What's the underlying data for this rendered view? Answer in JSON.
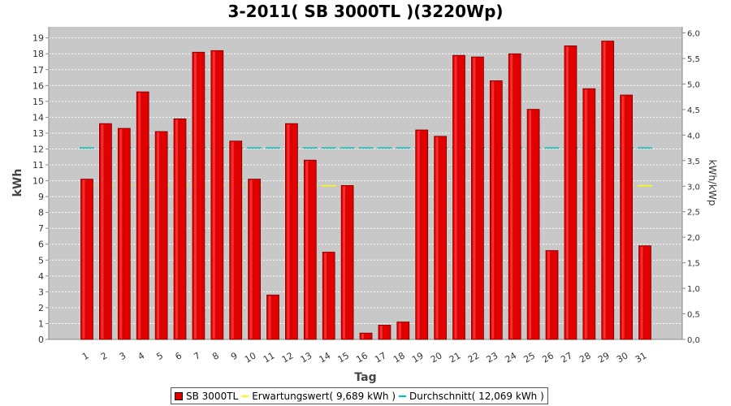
{
  "chart_data": {
    "type": "bar",
    "title": "3-2011( SB 3000TL )(3220Wp)",
    "xlabel": "Tag",
    "ylabel": "kWh",
    "y2label": "kWh/kWp",
    "ylim": [
      0,
      19.7
    ],
    "y2lim": [
      0,
      6.12
    ],
    "yticks": [
      "0",
      "1",
      "2",
      "3",
      "4",
      "5",
      "6",
      "7",
      "8",
      "9",
      "10",
      "11",
      "12",
      "13",
      "14",
      "15",
      "16",
      "17",
      "18",
      "19"
    ],
    "y2ticks": [
      "0,0",
      "0,5",
      "1,0",
      "1,5",
      "2,0",
      "2,5",
      "3,0",
      "3,5",
      "4,0",
      "4,5",
      "5,0",
      "5,5",
      "6,0"
    ],
    "categories": [
      "1",
      "2",
      "3",
      "4",
      "5",
      "6",
      "7",
      "8",
      "9",
      "10",
      "11",
      "12",
      "13",
      "14",
      "15",
      "16",
      "17",
      "18",
      "19",
      "20",
      "21",
      "22",
      "23",
      "24",
      "25",
      "26",
      "27",
      "28",
      "29",
      "30",
      "31"
    ],
    "series": [
      {
        "name": "SB 3000TL",
        "color": "#e00000",
        "values": [
          10.1,
          13.6,
          13.3,
          15.6,
          13.1,
          13.9,
          18.1,
          18.2,
          12.5,
          10.1,
          2.8,
          13.6,
          11.3,
          5.5,
          9.7,
          0.4,
          0.9,
          1.1,
          13.2,
          12.8,
          17.9,
          17.8,
          16.3,
          18.0,
          14.5,
          5.6,
          18.5,
          15.8,
          18.8,
          15.4,
          5.9
        ]
      }
    ],
    "reference_lines": [
      {
        "name": "Erwartungswert( 9,689 kWh )",
        "value": 9.689,
        "color": "#ffff00"
      },
      {
        "name": "Durchschnitt( 12,069 kWh )",
        "value": 12.069,
        "color": "#00c0c0"
      }
    ],
    "expectation_gaps": [
      "11",
      "16",
      "17",
      "18",
      "19",
      "20",
      "21",
      "22",
      "23",
      "24",
      "25",
      "26",
      "27",
      "28",
      "29"
    ],
    "grid": true,
    "legend_position": "bottom",
    "colors": {
      "plot_background": "#c8c8c8",
      "grid": "#ffffff",
      "bar": "#e00000"
    }
  }
}
